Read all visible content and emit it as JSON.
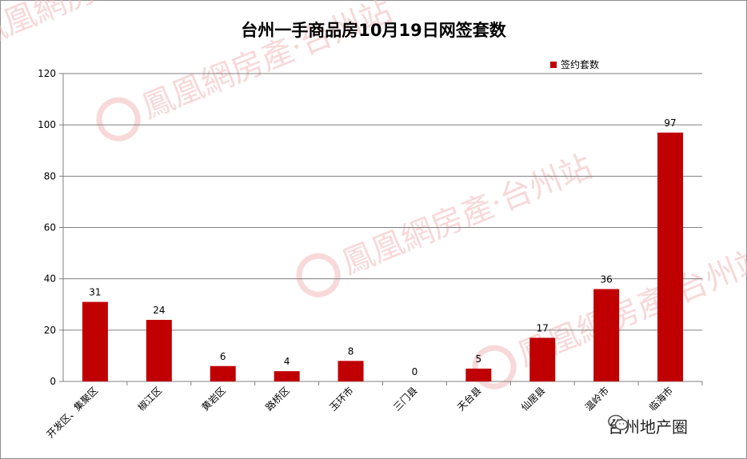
{
  "watermark_brand": "鳳凰網房產·台州站",
  "footer_account": "台州地产圈",
  "chart_data": {
    "type": "bar",
    "title": "台州一手商品房10月19日网签套数",
    "series_name": "签约套数",
    "bar_color": "#c00000",
    "categories": [
      "开发区、集聚区",
      "椒江区",
      "黄岩区",
      "路桥区",
      "玉环市",
      "三门县",
      "天台县",
      "仙居县",
      "温岭市",
      "临海市"
    ],
    "values": [
      31,
      24,
      6,
      4,
      8,
      0,
      5,
      17,
      36,
      97
    ],
    "ylim": [
      0,
      120
    ],
    "yticks": [
      0,
      20,
      40,
      60,
      80,
      100,
      120
    ],
    "grid": true,
    "legend_position": "top-right"
  }
}
